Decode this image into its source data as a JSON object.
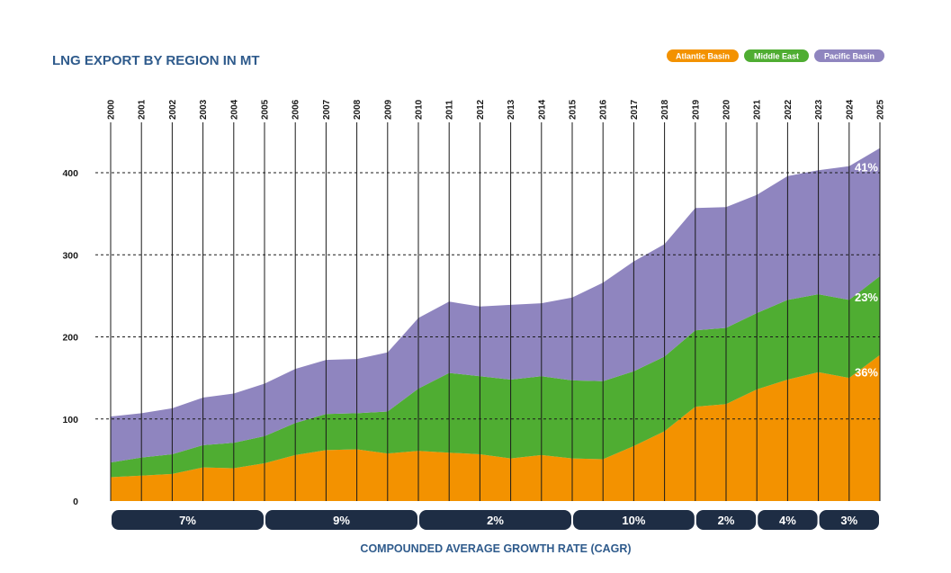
{
  "chart_data": {
    "type": "area",
    "stacked": true,
    "title": "LNG EXPORT BY REGION IN MT",
    "xlabel": "COMPOUNDED AVERAGE GROWTH RATE (CAGR)",
    "ylabel": "",
    "ylim": [
      0,
      440
    ],
    "yticks": [
      0,
      100,
      200,
      300,
      400
    ],
    "grid": "dashed-horizontal",
    "legend_position": "top-right",
    "x": [
      "2000",
      "2001",
      "2002",
      "2003",
      "2004",
      "2005",
      "2006",
      "2007",
      "2008",
      "2009",
      "2010",
      "2011",
      "2012",
      "2013",
      "2014",
      "2015",
      "2016",
      "2017",
      "2018",
      "2019",
      "2020",
      "2021",
      "2022",
      "2023",
      "2024",
      "2025"
    ],
    "series": [
      {
        "name": "Atlantic Basin",
        "color": "#f39200",
        "values": [
          29,
          31,
          33,
          41,
          40,
          46,
          56,
          62,
          63,
          58,
          61,
          59,
          57,
          52,
          56,
          52,
          51,
          67,
          85,
          115,
          118,
          136,
          148,
          157,
          150,
          178
        ]
      },
      {
        "name": "Middle East",
        "color": "#4fad32",
        "values": [
          18,
          22,
          24,
          27,
          31,
          33,
          39,
          44,
          44,
          51,
          76,
          97,
          95,
          96,
          96,
          95,
          95,
          91,
          91,
          93,
          93,
          93,
          97,
          95,
          95,
          96
        ]
      },
      {
        "name": "Pacific Basin",
        "color": "#8f85bf",
        "values": [
          56,
          54,
          56,
          58,
          60,
          64,
          66,
          66,
          66,
          72,
          86,
          87,
          85,
          91,
          89,
          101,
          120,
          134,
          137,
          149,
          147,
          144,
          151,
          151,
          163,
          156
        ]
      }
    ],
    "share_labels": [
      {
        "series": "Pacific Basin",
        "text": "41%"
      },
      {
        "series": "Middle East",
        "text": "23%"
      },
      {
        "series": "Atlantic Basin",
        "text": "36%"
      }
    ],
    "cagr_periods": [
      {
        "from": "2000",
        "to": "2005",
        "label": "7%"
      },
      {
        "from": "2005",
        "to": "2010",
        "label": "9%"
      },
      {
        "from": "2010",
        "to": "2015",
        "label": "2%"
      },
      {
        "from": "2015",
        "to": "2019",
        "label": "10%"
      },
      {
        "from": "2019",
        "to": "2021",
        "label": "2%"
      },
      {
        "from": "2021",
        "to": "2023",
        "label": "4%"
      },
      {
        "from": "2023",
        "to": "2025",
        "label": "3%"
      }
    ],
    "cagr_bar_color": "#1e2d44"
  }
}
